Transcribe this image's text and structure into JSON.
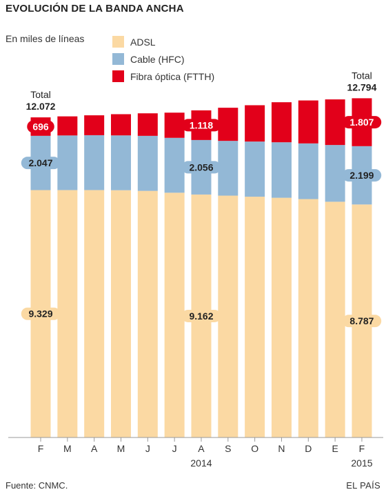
{
  "title": "EVOLUCIÓN DE LA BANDA ANCHA",
  "subtitle": "En miles de líneas",
  "source": "Fuente: CNMC.",
  "brand": "EL PAÍS",
  "colors": {
    "adsl": "#fbd9a3",
    "cable": "#93b8d6",
    "ftth": "#e2001a",
    "axis": "#999999"
  },
  "chart_data": {
    "type": "bar",
    "stacked": true,
    "categories": [
      "F",
      "M",
      "A",
      "M",
      "J",
      "J",
      "A",
      "S",
      "O",
      "N",
      "D",
      "E",
      "F"
    ],
    "year_labels": [
      {
        "index": 6,
        "label": "2014"
      },
      {
        "index": 12,
        "label": "2015"
      }
    ],
    "series": [
      {
        "name": "ADSL",
        "color": "#fbd9a3",
        "values": [
          9329,
          9330,
          9330,
          9325,
          9300,
          9230,
          9162,
          9120,
          9080,
          9040,
          8990,
          8890,
          8787
        ]
      },
      {
        "name": "Cable (HFC)",
        "color": "#93b8d6",
        "values": [
          2047,
          2060,
          2070,
          2067,
          2075,
          2070,
          2056,
          2065,
          2080,
          2093,
          2100,
          2140,
          2199
        ]
      },
      {
        "name": "Fibra óptica (FTTH)",
        "color": "#e2001a",
        "values": [
          696,
          720,
          750,
          800,
          850,
          950,
          1118,
          1250,
          1370,
          1510,
          1620,
          1720,
          1807
        ]
      }
    ],
    "annotations": [
      {
        "index": 0,
        "series": 2,
        "label": "696"
      },
      {
        "index": 0,
        "series": 1,
        "label": "2.047"
      },
      {
        "index": 0,
        "series": 0,
        "label": "9.329"
      },
      {
        "index": 6,
        "series": 2,
        "label": "1.118"
      },
      {
        "index": 6,
        "series": 1,
        "label": "2.056"
      },
      {
        "index": 6,
        "series": 0,
        "label": "9.162"
      },
      {
        "index": 12,
        "series": 2,
        "label": "1.807"
      },
      {
        "index": 12,
        "series": 1,
        "label": "2.199"
      },
      {
        "index": 12,
        "series": 0,
        "label": "8.787"
      }
    ],
    "totals": [
      {
        "index": 0,
        "caption": "Total",
        "value": "12.072"
      },
      {
        "index": 12,
        "caption": "Total",
        "value": "12.794"
      }
    ],
    "ylim": [
      0,
      14000
    ],
    "grid": false,
    "legend_position": "top"
  }
}
